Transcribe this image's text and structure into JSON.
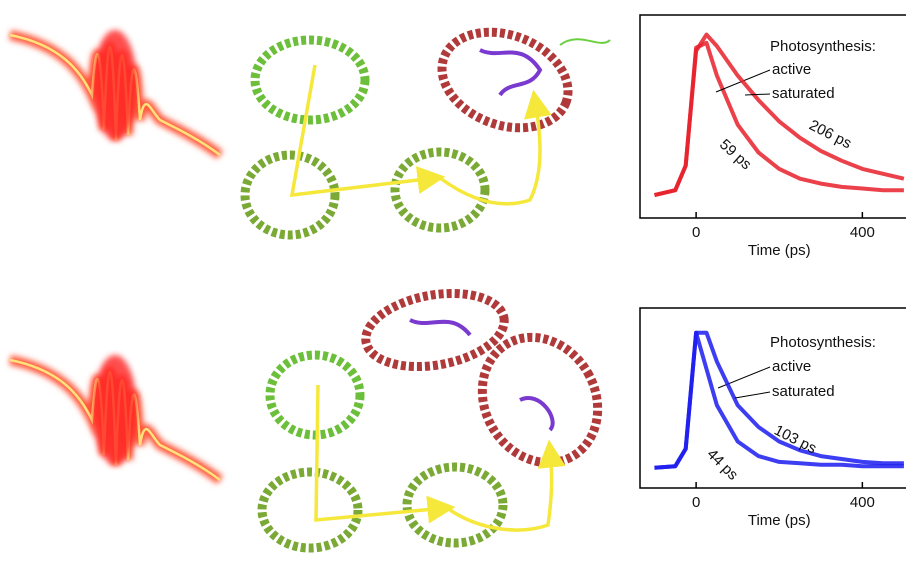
{
  "chart_data": [
    {
      "type": "line",
      "xlabel": "Time (ps)",
      "legend_title": "Photosynthesis:",
      "x": [
        -100,
        -50,
        -25,
        0,
        25,
        50,
        100,
        150,
        200,
        250,
        300,
        350,
        400,
        450,
        500
      ],
      "series": [
        {
          "name": "active",
          "color": "#e8202a",
          "values": [
            0.02,
            0.05,
            0.2,
            0.92,
            0.95,
            0.75,
            0.45,
            0.28,
            0.18,
            0.12,
            0.09,
            0.07,
            0.06,
            0.05,
            0.05
          ]
        },
        {
          "name": "saturated",
          "color": "#e8202a",
          "values": [
            0.02,
            0.05,
            0.2,
            0.9,
            1.0,
            0.93,
            0.75,
            0.6,
            0.47,
            0.37,
            0.29,
            0.23,
            0.18,
            0.15,
            0.12
          ]
        }
      ],
      "annotations": [
        "206 ps",
        "59 ps"
      ],
      "xlim": [
        -135,
        505
      ],
      "ylim": [
        -0.12,
        1.12
      ],
      "xticks": [
        0,
        400
      ]
    },
    {
      "type": "line",
      "xlabel": "Time (ps)",
      "legend_title": "Photosynthesis:",
      "x": [
        -100,
        -50,
        -25,
        0,
        25,
        50,
        100,
        150,
        200,
        250,
        300,
        350,
        400,
        450,
        500
      ],
      "series": [
        {
          "name": "active",
          "color": "#1b1bf0",
          "values": [
            0.02,
            0.03,
            0.15,
            0.95,
            0.7,
            0.45,
            0.2,
            0.1,
            0.06,
            0.05,
            0.04,
            0.04,
            0.03,
            0.03,
            0.03
          ]
        },
        {
          "name": "saturated",
          "color": "#1b1bf0",
          "values": [
            0.02,
            0.03,
            0.15,
            0.95,
            0.95,
            0.75,
            0.45,
            0.3,
            0.2,
            0.14,
            0.1,
            0.08,
            0.06,
            0.05,
            0.05
          ]
        }
      ],
      "annotations": [
        "103 ps",
        "44 ps"
      ],
      "xlim": [
        -135,
        505
      ],
      "ylim": [
        -0.12,
        1.12
      ],
      "xticks": [
        0,
        400
      ]
    }
  ]
}
